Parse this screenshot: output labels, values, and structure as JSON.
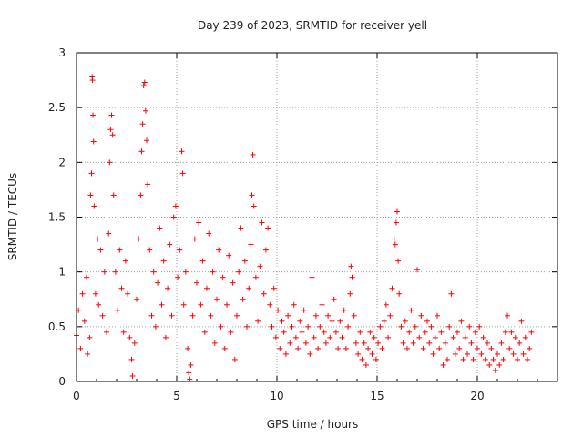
{
  "chart_data": {
    "type": "scatter",
    "title": "Day 239 of 2023, SRMTID for receiver yell",
    "xlabel": "GPS time / hours",
    "ylabel": "SRMTID / TECUs",
    "xlim": [
      0,
      24
    ],
    "ylim": [
      0,
      3
    ],
    "xticks": [
      0,
      5,
      10,
      15,
      20
    ],
    "yticks": [
      0,
      0.5,
      1,
      1.5,
      2,
      2.5,
      3
    ],
    "xtick_labels": [
      "0",
      "5",
      "10",
      "15",
      "20"
    ],
    "ytick_labels": [
      "0",
      "0.5",
      "1",
      "1.5",
      "2",
      "2.5",
      "3"
    ],
    "grid": true,
    "marker": "+",
    "color": "#ff0000",
    "series": [
      {
        "name": "SRMTID",
        "points": [
          [
            0.0,
            0.42
          ],
          [
            0.1,
            0.65
          ],
          [
            0.2,
            0.3
          ],
          [
            0.3,
            0.8
          ],
          [
            0.4,
            0.55
          ],
          [
            0.5,
            0.95
          ],
          [
            0.55,
            0.25
          ],
          [
            0.65,
            0.4
          ],
          [
            0.7,
            1.7
          ],
          [
            0.75,
            1.9
          ],
          [
            0.78,
            2.78
          ],
          [
            0.8,
            2.75
          ],
          [
            0.82,
            2.43
          ],
          [
            0.85,
            2.19
          ],
          [
            0.88,
            1.6
          ],
          [
            0.95,
            0.8
          ],
          [
            1.05,
            1.3
          ],
          [
            1.1,
            0.7
          ],
          [
            1.2,
            1.2
          ],
          [
            1.3,
            0.6
          ],
          [
            1.4,
            1.0
          ],
          [
            1.5,
            0.45
          ],
          [
            1.6,
            1.35
          ],
          [
            1.65,
            2.0
          ],
          [
            1.7,
            2.3
          ],
          [
            1.75,
            2.43
          ],
          [
            1.8,
            2.25
          ],
          [
            1.85,
            1.7
          ],
          [
            1.95,
            1.0
          ],
          [
            2.05,
            0.65
          ],
          [
            2.15,
            1.2
          ],
          [
            2.25,
            0.85
          ],
          [
            2.35,
            0.45
          ],
          [
            2.45,
            1.1
          ],
          [
            2.55,
            0.8
          ],
          [
            2.65,
            0.4
          ],
          [
            2.75,
            0.2
          ],
          [
            2.8,
            0.05
          ],
          [
            2.9,
            0.35
          ],
          [
            3.0,
            0.75
          ],
          [
            3.1,
            1.3
          ],
          [
            3.2,
            1.7
          ],
          [
            3.25,
            2.1
          ],
          [
            3.3,
            2.35
          ],
          [
            3.35,
            2.7
          ],
          [
            3.4,
            2.73
          ],
          [
            3.45,
            2.47
          ],
          [
            3.5,
            2.2
          ],
          [
            3.55,
            1.8
          ],
          [
            3.65,
            1.2
          ],
          [
            3.75,
            0.6
          ],
          [
            3.85,
            1.0
          ],
          [
            3.95,
            0.5
          ],
          [
            4.05,
            0.9
          ],
          [
            4.15,
            1.4
          ],
          [
            4.25,
            0.7
          ],
          [
            4.35,
            1.1
          ],
          [
            4.45,
            0.4
          ],
          [
            4.55,
            0.85
          ],
          [
            4.65,
            1.25
          ],
          [
            4.75,
            0.6
          ],
          [
            4.85,
            1.5
          ],
          [
            4.95,
            1.6
          ],
          [
            5.05,
            0.95
          ],
          [
            5.15,
            1.2
          ],
          [
            5.25,
            2.1
          ],
          [
            5.3,
            1.9
          ],
          [
            5.35,
            0.7
          ],
          [
            5.45,
            1.0
          ],
          [
            5.55,
            0.3
          ],
          [
            5.6,
            0.08
          ],
          [
            5.65,
            0.02
          ],
          [
            5.7,
            0.15
          ],
          [
            5.8,
            0.6
          ],
          [
            5.9,
            1.3
          ],
          [
            6.0,
            0.9
          ],
          [
            6.1,
            1.45
          ],
          [
            6.2,
            0.7
          ],
          [
            6.3,
            1.1
          ],
          [
            6.4,
            0.45
          ],
          [
            6.5,
            0.85
          ],
          [
            6.6,
            1.35
          ],
          [
            6.7,
            0.6
          ],
          [
            6.8,
            1.0
          ],
          [
            6.9,
            0.35
          ],
          [
            7.0,
            0.75
          ],
          [
            7.1,
            1.2
          ],
          [
            7.2,
            0.5
          ],
          [
            7.3,
            0.95
          ],
          [
            7.4,
            0.3
          ],
          [
            7.5,
            0.7
          ],
          [
            7.6,
            1.15
          ],
          [
            7.7,
            0.45
          ],
          [
            7.8,
            0.9
          ],
          [
            7.9,
            0.2
          ],
          [
            8.0,
            0.6
          ],
          [
            8.1,
            1.0
          ],
          [
            8.2,
            1.4
          ],
          [
            8.3,
            0.75
          ],
          [
            8.4,
            1.1
          ],
          [
            8.5,
            0.5
          ],
          [
            8.6,
            0.85
          ],
          [
            8.7,
            1.25
          ],
          [
            8.75,
            1.7
          ],
          [
            8.8,
            2.07
          ],
          [
            8.85,
            1.6
          ],
          [
            8.95,
            0.95
          ],
          [
            9.05,
            0.55
          ],
          [
            9.15,
            1.05
          ],
          [
            9.25,
            1.45
          ],
          [
            9.35,
            0.8
          ],
          [
            9.45,
            1.2
          ],
          [
            9.55,
            1.4
          ],
          [
            9.65,
            0.7
          ],
          [
            9.75,
            0.5
          ],
          [
            9.85,
            0.85
          ],
          [
            9.95,
            0.4
          ],
          [
            10.05,
            0.65
          ],
          [
            10.15,
            0.3
          ],
          [
            10.25,
            0.55
          ],
          [
            10.35,
            0.45
          ],
          [
            10.45,
            0.25
          ],
          [
            10.55,
            0.6
          ],
          [
            10.65,
            0.35
          ],
          [
            10.75,
            0.5
          ],
          [
            10.85,
            0.7
          ],
          [
            10.95,
            0.4
          ],
          [
            11.05,
            0.3
          ],
          [
            11.15,
            0.55
          ],
          [
            11.25,
            0.45
          ],
          [
            11.35,
            0.65
          ],
          [
            11.45,
            0.35
          ],
          [
            11.55,
            0.5
          ],
          [
            11.65,
            0.25
          ],
          [
            11.75,
            0.95
          ],
          [
            11.85,
            0.4
          ],
          [
            11.95,
            0.6
          ],
          [
            12.05,
            0.3
          ],
          [
            12.15,
            0.5
          ],
          [
            12.25,
            0.7
          ],
          [
            12.35,
            0.45
          ],
          [
            12.45,
            0.35
          ],
          [
            12.55,
            0.6
          ],
          [
            12.65,
            0.4
          ],
          [
            12.75,
            0.55
          ],
          [
            12.85,
            0.75
          ],
          [
            12.95,
            0.45
          ],
          [
            13.05,
            0.3
          ],
          [
            13.15,
            0.55
          ],
          [
            13.25,
            0.4
          ],
          [
            13.35,
            0.65
          ],
          [
            13.45,
            0.3
          ],
          [
            13.55,
            0.5
          ],
          [
            13.65,
            0.8
          ],
          [
            13.7,
            1.05
          ],
          [
            13.75,
            0.95
          ],
          [
            13.85,
            0.6
          ],
          [
            13.95,
            0.35
          ],
          [
            14.05,
            0.25
          ],
          [
            14.15,
            0.45
          ],
          [
            14.25,
            0.2
          ],
          [
            14.35,
            0.35
          ],
          [
            14.45,
            0.15
          ],
          [
            14.55,
            0.3
          ],
          [
            14.65,
            0.45
          ],
          [
            14.75,
            0.25
          ],
          [
            14.85,
            0.4
          ],
          [
            14.95,
            0.2
          ],
          [
            15.05,
            0.35
          ],
          [
            15.15,
            0.5
          ],
          [
            15.25,
            0.3
          ],
          [
            15.35,
            0.55
          ],
          [
            15.45,
            0.7
          ],
          [
            15.55,
            0.4
          ],
          [
            15.65,
            0.6
          ],
          [
            15.75,
            0.85
          ],
          [
            15.85,
            1.3
          ],
          [
            15.9,
            1.25
          ],
          [
            15.95,
            1.45
          ],
          [
            16.0,
            1.55
          ],
          [
            16.05,
            1.1
          ],
          [
            16.1,
            0.8
          ],
          [
            16.2,
            0.5
          ],
          [
            16.3,
            0.35
          ],
          [
            16.4,
            0.55
          ],
          [
            16.5,
            0.3
          ],
          [
            16.6,
            0.45
          ],
          [
            16.7,
            0.65
          ],
          [
            16.8,
            0.35
          ],
          [
            16.9,
            0.5
          ],
          [
            17.0,
            1.02
          ],
          [
            17.1,
            0.4
          ],
          [
            17.2,
            0.6
          ],
          [
            17.3,
            0.3
          ],
          [
            17.4,
            0.45
          ],
          [
            17.5,
            0.55
          ],
          [
            17.6,
            0.35
          ],
          [
            17.7,
            0.5
          ],
          [
            17.8,
            0.25
          ],
          [
            17.9,
            0.4
          ],
          [
            18.0,
            0.6
          ],
          [
            18.1,
            0.3
          ],
          [
            18.2,
            0.45
          ],
          [
            18.3,
            0.15
          ],
          [
            18.4,
            0.35
          ],
          [
            18.5,
            0.2
          ],
          [
            18.6,
            0.5
          ],
          [
            18.7,
            0.8
          ],
          [
            18.8,
            0.4
          ],
          [
            18.9,
            0.25
          ],
          [
            19.0,
            0.45
          ],
          [
            19.1,
            0.3
          ],
          [
            19.2,
            0.55
          ],
          [
            19.3,
            0.2
          ],
          [
            19.4,
            0.4
          ],
          [
            19.5,
            0.25
          ],
          [
            19.6,
            0.5
          ],
          [
            19.7,
            0.35
          ],
          [
            19.8,
            0.2
          ],
          [
            19.9,
            0.45
          ],
          [
            20.0,
            0.3
          ],
          [
            20.1,
            0.5
          ],
          [
            20.2,
            0.25
          ],
          [
            20.3,
            0.4
          ],
          [
            20.4,
            0.2
          ],
          [
            20.5,
            0.35
          ],
          [
            20.6,
            0.15
          ],
          [
            20.7,
            0.3
          ],
          [
            20.8,
            0.2
          ],
          [
            20.9,
            0.1
          ],
          [
            21.0,
            0.25
          ],
          [
            21.1,
            0.15
          ],
          [
            21.2,
            0.35
          ],
          [
            21.3,
            0.2
          ],
          [
            21.4,
            0.45
          ],
          [
            21.5,
            0.6
          ],
          [
            21.6,
            0.3
          ],
          [
            21.7,
            0.45
          ],
          [
            21.8,
            0.25
          ],
          [
            21.9,
            0.4
          ],
          [
            22.0,
            0.2
          ],
          [
            22.1,
            0.35
          ],
          [
            22.2,
            0.55
          ],
          [
            22.3,
            0.25
          ],
          [
            22.4,
            0.4
          ],
          [
            22.5,
            0.2
          ],
          [
            22.6,
            0.3
          ],
          [
            22.7,
            0.45
          ]
        ]
      }
    ]
  }
}
